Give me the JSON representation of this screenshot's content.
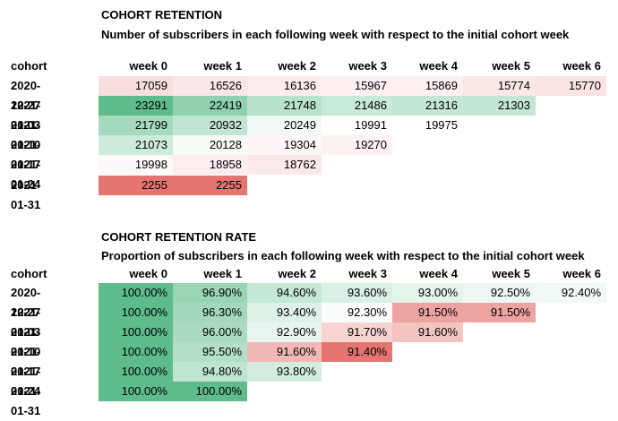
{
  "chart_data": [
    {
      "type": "table",
      "title": "COHORT RETENTION",
      "subtitle": "Number of subscribers in each following week with respect to the initial cohort week",
      "row_header": "cohort",
      "columns": [
        "week 0",
        "week 1",
        "week 2",
        "week 3",
        "week 4",
        "week 5",
        "week 6"
      ],
      "rows": [
        "2020-12-27",
        "2021-01-03",
        "2021-01-10",
        "2021-01-17",
        "2021-01-24",
        "2021-01-31"
      ],
      "values": [
        [
          "17059",
          "16526",
          "16136",
          "15967",
          "15869",
          "15774",
          "15770"
        ],
        [
          "23291",
          "22419",
          "21748",
          "21486",
          "21316",
          "21303",
          ""
        ],
        [
          "21799",
          "20932",
          "20249",
          "19991",
          "19975",
          "",
          ""
        ],
        [
          "21073",
          "20128",
          "19304",
          "19270",
          "",
          "",
          ""
        ],
        [
          "19998",
          "18958",
          "18762",
          "",
          "",
          "",
          ""
        ],
        [
          "2255",
          "2255",
          "",
          "",
          "",
          "",
          ""
        ]
      ],
      "cell_colors": [
        [
          "#f8dede",
          "#fae6e6",
          "#fcecec",
          "#fcefef",
          "#fdf0f0",
          "#fbe6e6",
          "#f9e3e3"
        ],
        [
          "#5dbb8c",
          "#8fd0af",
          "#b8e2cc",
          "#c8e9d8",
          "#c4e7d5",
          "#c4e7d5",
          ""
        ],
        [
          "#a6dabf",
          "#c1e5d2",
          "#f1f9f5",
          "#fefefe",
          "#ffffff",
          "",
          ""
        ],
        [
          "#cdebdb",
          "#f6fbf8",
          "#fef6f6",
          "#fdf2f2",
          "",
          "",
          ""
        ],
        [
          "#fef8f8",
          "#fceeee",
          "#fbe9e9",
          "",
          "",
          "",
          ""
        ],
        [
          "#e57570",
          "#e57570",
          "",
          "",
          "",
          "",
          ""
        ]
      ]
    },
    {
      "type": "table",
      "title": "COHORT RETENTION RATE",
      "subtitle": "Proportion of subscribers in each following week with respect to the initial cohort week",
      "row_header": "cohort",
      "columns": [
        "week 0",
        "week 1",
        "week 2",
        "week 3",
        "week 4",
        "week 5",
        "week 6"
      ],
      "rows": [
        "2020-12-27",
        "2021-01-03",
        "2021-01-10",
        "2021-01-17",
        "2021-01-24",
        "2021-01-31"
      ],
      "values": [
        [
          "100.00%",
          "96.90%",
          "94.60%",
          "93.60%",
          "93.00%",
          "92.50%",
          "92.40%"
        ],
        [
          "100.00%",
          "96.30%",
          "93.40%",
          "92.30%",
          "91.50%",
          "91.50%",
          ""
        ],
        [
          "100.00%",
          "96.00%",
          "92.90%",
          "91.70%",
          "91.60%",
          "",
          ""
        ],
        [
          "100.00%",
          "95.50%",
          "91.60%",
          "91.40%",
          "",
          "",
          ""
        ],
        [
          "100.00%",
          "94.80%",
          "93.80%",
          "",
          "",
          "",
          ""
        ],
        [
          "100.00%",
          "100.00%",
          "",
          "",
          "",
          "",
          ""
        ]
      ],
      "cell_colors": [
        [
          "#5dbb8c",
          "#99d4b5",
          "#c6e8d6",
          "#d9f0e4",
          "#e4f4eb",
          "#eef8f3",
          "#f1f9f5"
        ],
        [
          "#5dbb8c",
          "#a3d8bd",
          "#dff2e8",
          "#fafdfb",
          "#eda4a1",
          "#eda4a1",
          ""
        ],
        [
          "#5dbb8c",
          "#aadbc2",
          "#e9f6ef",
          "#f7d3d2",
          "#f3c4c2",
          "",
          ""
        ],
        [
          "#5dbb8c",
          "#b3dfc8",
          "#f1b9b6",
          "#e57570",
          "",
          "",
          ""
        ],
        [
          "#5dbb8c",
          "#bfe4d0",
          "#d2ecde",
          "",
          "",
          "",
          ""
        ],
        [
          "#5dbb8c",
          "#5dbb8c",
          "",
          "",
          "",
          "",
          ""
        ]
      ]
    }
  ]
}
